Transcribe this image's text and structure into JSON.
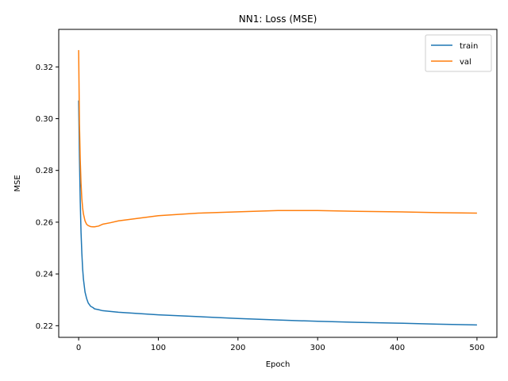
{
  "chart_data": {
    "type": "line",
    "title": "NN1: Loss (MSE)",
    "xlabel": "Epoch",
    "ylabel": "MSE",
    "xlim": [
      -25,
      525
    ],
    "ylim": [
      0.2155,
      0.3345
    ],
    "xticks": [
      0,
      100,
      200,
      300,
      400,
      500
    ],
    "yticks": [
      0.22,
      0.24,
      0.26,
      0.28,
      0.3,
      0.32
    ],
    "ytick_labels": [
      "0.22",
      "0.24",
      "0.26",
      "0.28",
      "0.30",
      "0.32"
    ],
    "grid": false,
    "legend": "top-right",
    "series": [
      {
        "name": "train",
        "color": "#1f77b4",
        "x": [
          0,
          1,
          2,
          3,
          4,
          5,
          6,
          8,
          10,
          12,
          15,
          18,
          20,
          25,
          30,
          40,
          50,
          75,
          100,
          150,
          200,
          250,
          300,
          350,
          400,
          450,
          500
        ],
        "y": [
          0.307,
          0.285,
          0.268,
          0.256,
          0.248,
          0.242,
          0.238,
          0.233,
          0.2305,
          0.2288,
          0.2275,
          0.227,
          0.2265,
          0.2262,
          0.2258,
          0.2255,
          0.2252,
          0.2247,
          0.2242,
          0.2235,
          0.2228,
          0.2222,
          0.2217,
          0.2213,
          0.221,
          0.2206,
          0.2203
        ]
      },
      {
        "name": "val",
        "color": "#ff7f0e",
        "x": [
          0,
          1,
          2,
          3,
          4,
          5,
          6,
          8,
          10,
          12,
          15,
          18,
          20,
          25,
          30,
          40,
          50,
          75,
          100,
          150,
          200,
          250,
          300,
          350,
          400,
          450,
          500
        ],
        "y": [
          0.3265,
          0.298,
          0.284,
          0.275,
          0.269,
          0.2655,
          0.2632,
          0.2605,
          0.2592,
          0.2587,
          0.2583,
          0.2582,
          0.2582,
          0.2585,
          0.2592,
          0.2598,
          0.2605,
          0.2615,
          0.2625,
          0.2635,
          0.264,
          0.2645,
          0.2645,
          0.2642,
          0.264,
          0.2637,
          0.2635
        ]
      }
    ]
  }
}
